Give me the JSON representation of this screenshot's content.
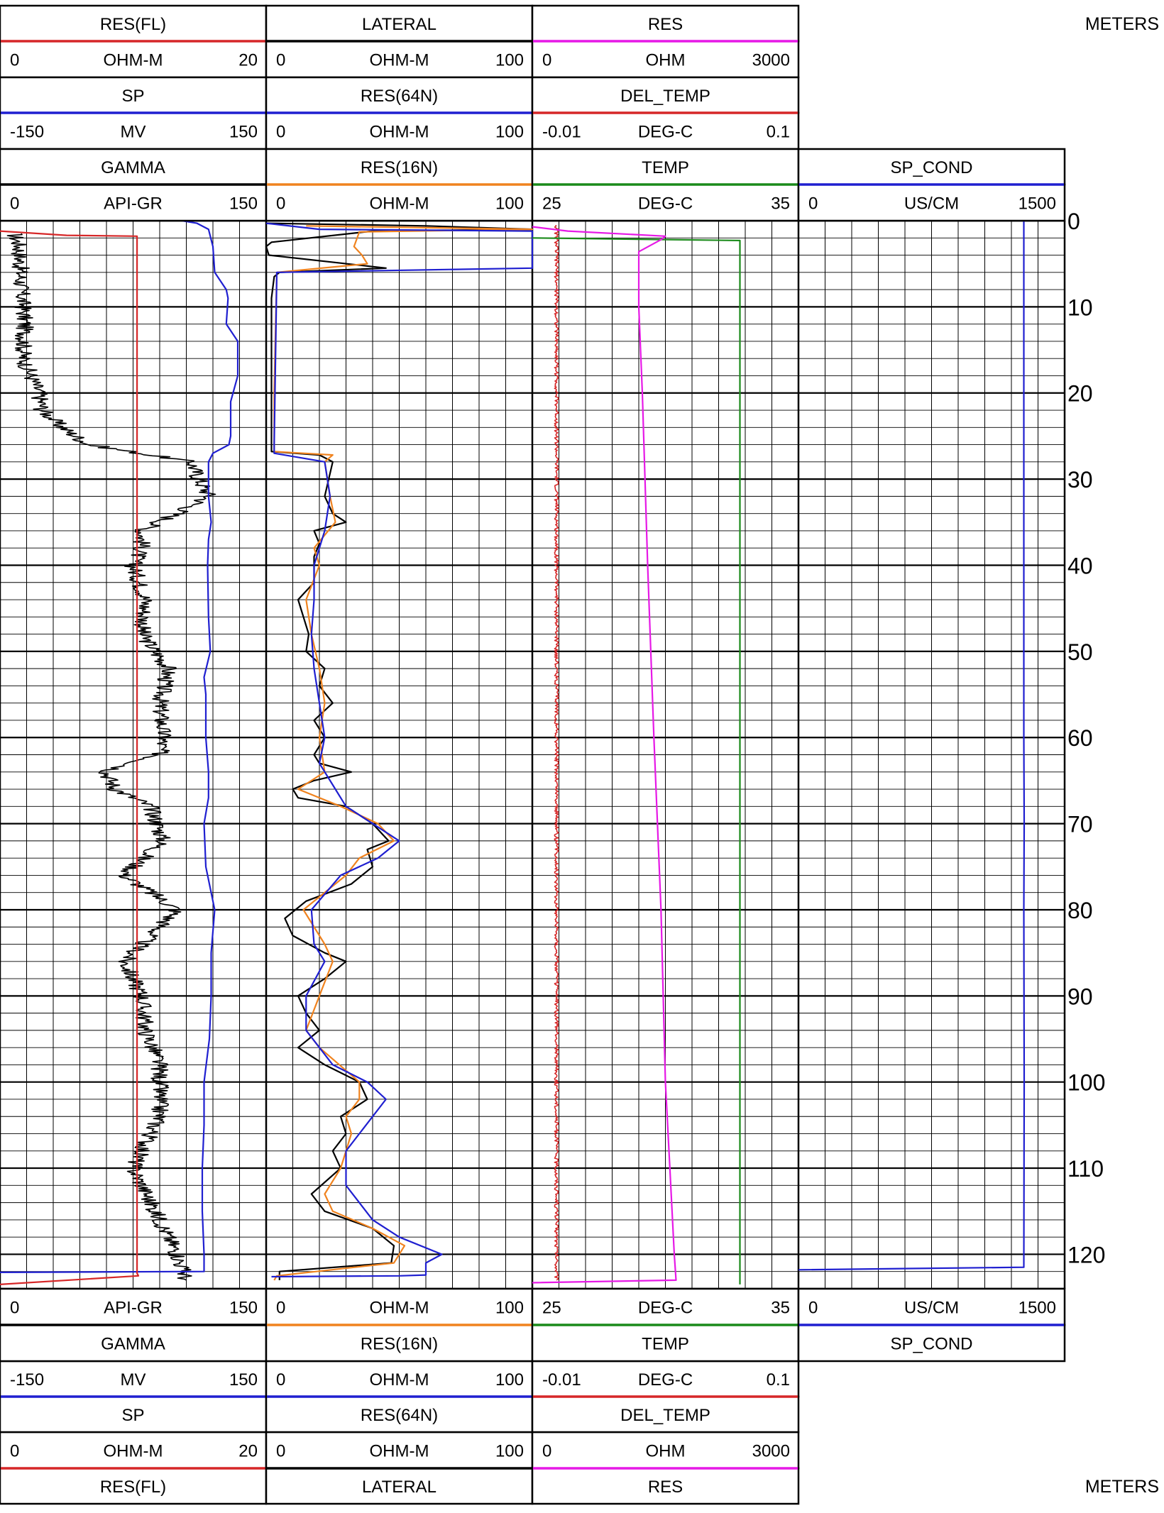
{
  "depth_unit_label": "METERS",
  "tracks": [
    {
      "id": "track1",
      "curves": [
        {
          "id": "res_fl",
          "name": "RES(FL)",
          "unit": "OHM-M",
          "min": "0",
          "max": "20",
          "color": "#d62728",
          "top_row": 1,
          "bottom_row": 6
        },
        {
          "id": "sp",
          "name": "SP",
          "unit": "MV",
          "min": "-150",
          "max": "150",
          "color": "#1f1fd0",
          "top_row": 2,
          "bottom_row": 5
        },
        {
          "id": "gamma",
          "name": "GAMMA",
          "unit": "API-GR",
          "min": "0",
          "max": "150",
          "color": "#000000",
          "top_row": 3,
          "bottom_row": 4
        }
      ]
    },
    {
      "id": "track2",
      "curves": [
        {
          "id": "lateral",
          "name": "LATERAL",
          "unit": "OHM-M",
          "min": "0",
          "max": "100",
          "color": "#000000",
          "top_row": 1,
          "bottom_row": 6
        },
        {
          "id": "res64n",
          "name": "RES(64N)",
          "unit": "OHM-M",
          "min": "0",
          "max": "100",
          "color": "#1f1fd0",
          "top_row": 2,
          "bottom_row": 5
        },
        {
          "id": "res16n",
          "name": "RES(16N)",
          "unit": "OHM-M",
          "min": "0",
          "max": "100",
          "color": "#f0831f",
          "top_row": 3,
          "bottom_row": 4
        }
      ]
    },
    {
      "id": "track3",
      "curves": [
        {
          "id": "res",
          "name": "RES",
          "unit": "OHM",
          "min": "0",
          "max": "3000",
          "color": "#e619e6",
          "top_row": 1,
          "bottom_row": 6
        },
        {
          "id": "del_temp",
          "name": "DEL_TEMP",
          "unit": "DEG-C",
          "min": "-0.01",
          "max": "0.1",
          "color": "#d62728",
          "top_row": 2,
          "bottom_row": 5
        },
        {
          "id": "temp",
          "name": "TEMP",
          "unit": "DEG-C",
          "min": "25",
          "max": "35",
          "color": "#1a8a1a",
          "top_row": 3,
          "bottom_row": 4
        }
      ]
    },
    {
      "id": "track4",
      "curves": [
        {
          "id": "sp_cond",
          "name": "SP_COND",
          "unit": "US/CM",
          "min": "0",
          "max": "1500",
          "color": "#1f1fd0",
          "top_row": 3,
          "bottom_row": 4
        }
      ]
    }
  ],
  "chart_data": {
    "type": "line",
    "depth_axis": {
      "label": "METERS",
      "range": [
        0,
        124
      ],
      "major_ticks": [
        0,
        10,
        20,
        30,
        40,
        50,
        60,
        70,
        80,
        90,
        100,
        110,
        120
      ],
      "minor_step": 2
    },
    "grid": true,
    "series": [
      {
        "id": "gamma",
        "name": "GAMMA",
        "track": 0,
        "range": [
          0,
          150
        ],
        "noise": 5,
        "points": [
          [
            1.5,
            8
          ],
          [
            3,
            11
          ],
          [
            8,
            12
          ],
          [
            12,
            14
          ],
          [
            16,
            13
          ],
          [
            20,
            22
          ],
          [
            22,
            24
          ],
          [
            24,
            35
          ],
          [
            26,
            50
          ],
          [
            28,
            108
          ],
          [
            30,
            112
          ],
          [
            32,
            118
          ],
          [
            34,
            100
          ],
          [
            36,
            80
          ],
          [
            38,
            80
          ],
          [
            40,
            75
          ],
          [
            44,
            82
          ],
          [
            48,
            80
          ],
          [
            52,
            95
          ],
          [
            56,
            90
          ],
          [
            60,
            92
          ],
          [
            62,
            90
          ],
          [
            64,
            60
          ],
          [
            66,
            65
          ],
          [
            68,
            85
          ],
          [
            72,
            92
          ],
          [
            76,
            70
          ],
          [
            80,
            100
          ],
          [
            84,
            80
          ],
          [
            86,
            70
          ],
          [
            90,
            80
          ],
          [
            94,
            82
          ],
          [
            98,
            90
          ],
          [
            104,
            90
          ],
          [
            110,
            75
          ],
          [
            116,
            90
          ],
          [
            120,
            100
          ],
          [
            123,
            105
          ]
        ]
      },
      {
        "id": "sp",
        "name": "SP",
        "track": 0,
        "range": [
          -150,
          150
        ],
        "points": [
          [
            0,
            55
          ],
          [
            0.3,
            72
          ],
          [
            1,
            85
          ],
          [
            3,
            90
          ],
          [
            6,
            92
          ],
          [
            8,
            105
          ],
          [
            9,
            107
          ],
          [
            12,
            105
          ],
          [
            14,
            118
          ],
          [
            18,
            118
          ],
          [
            21,
            110
          ],
          [
            25,
            110
          ],
          [
            26,
            108
          ],
          [
            27,
            90
          ],
          [
            28,
            85
          ],
          [
            32,
            85
          ],
          [
            35,
            88
          ],
          [
            37,
            85
          ],
          [
            40,
            84
          ],
          [
            46,
            85
          ],
          [
            50,
            87
          ],
          [
            53,
            80
          ],
          [
            55,
            82
          ],
          [
            60,
            82
          ],
          [
            64,
            85
          ],
          [
            67,
            85
          ],
          [
            70,
            80
          ],
          [
            75,
            82
          ],
          [
            80,
            92
          ],
          [
            85,
            88
          ],
          [
            90,
            88
          ],
          [
            95,
            86
          ],
          [
            100,
            80
          ],
          [
            105,
            80
          ],
          [
            110,
            78
          ],
          [
            115,
            78
          ],
          [
            120,
            80
          ],
          [
            122,
            80
          ],
          [
            122.1,
            -150
          ]
        ]
      },
      {
        "id": "res_fl",
        "name": "RES(FL)",
        "track": 0,
        "range": [
          0,
          20
        ],
        "points": [
          [
            1.2,
            0
          ],
          [
            1.7,
            5.0
          ],
          [
            1.8,
            10.3
          ],
          [
            122.2,
            10.3
          ],
          [
            122.5,
            10.4
          ],
          [
            123.5,
            0
          ]
        ]
      },
      {
        "id": "lateral",
        "name": "LATERAL",
        "track": 1,
        "range": [
          0,
          100
        ],
        "points": [
          [
            0.3,
            0
          ],
          [
            0.6,
            60
          ],
          [
            1,
            100
          ],
          [
            1.2,
            40
          ],
          [
            2.5,
            2
          ],
          [
            3,
            0
          ],
          [
            4,
            1
          ],
          [
            5.5,
            45
          ],
          [
            6,
            5
          ],
          [
            6.5,
            3
          ],
          [
            9,
            2
          ],
          [
            20,
            2
          ],
          [
            26.8,
            2
          ],
          [
            27.2,
            20
          ],
          [
            28,
            25
          ],
          [
            32,
            22
          ],
          [
            34,
            25
          ],
          [
            35,
            30
          ],
          [
            36,
            18
          ],
          [
            37.5,
            20
          ],
          [
            39,
            18
          ],
          [
            42,
            18
          ],
          [
            44,
            12
          ],
          [
            46,
            14
          ],
          [
            48,
            16
          ],
          [
            50,
            15
          ],
          [
            52,
            22
          ],
          [
            54,
            20
          ],
          [
            56,
            25
          ],
          [
            58,
            18
          ],
          [
            60,
            22
          ],
          [
            62,
            18
          ],
          [
            63,
            20
          ],
          [
            64,
            32
          ],
          [
            65,
            18
          ],
          [
            66,
            10
          ],
          [
            67,
            12
          ],
          [
            68,
            30
          ],
          [
            70,
            40
          ],
          [
            72,
            46
          ],
          [
            73,
            38
          ],
          [
            75,
            40
          ],
          [
            77,
            32
          ],
          [
            79,
            15
          ],
          [
            81,
            7
          ],
          [
            83,
            10
          ],
          [
            85,
            22
          ],
          [
            86,
            30
          ],
          [
            88,
            22
          ],
          [
            90,
            12
          ],
          [
            92,
            15
          ],
          [
            94,
            20
          ],
          [
            96,
            12
          ],
          [
            98,
            22
          ],
          [
            100,
            35
          ],
          [
            102,
            38
          ],
          [
            104,
            28
          ],
          [
            106,
            30
          ],
          [
            108,
            25
          ],
          [
            110,
            28
          ],
          [
            113,
            17
          ],
          [
            115,
            22
          ],
          [
            117,
            40
          ],
          [
            119,
            48
          ],
          [
            121,
            47
          ],
          [
            122,
            5
          ],
          [
            123,
            5
          ]
        ]
      },
      {
        "id": "res16n",
        "name": "RES(16N)",
        "track": 1,
        "range": [
          0,
          100
        ],
        "points": [
          [
            0.6,
            15
          ],
          [
            1,
            100
          ],
          [
            1.3,
            35
          ],
          [
            3,
            33
          ],
          [
            4,
            36
          ],
          [
            5,
            38
          ],
          [
            6,
            4
          ],
          [
            20,
            3
          ],
          [
            26.8,
            3
          ],
          [
            27.2,
            25
          ],
          [
            28,
            22
          ],
          [
            32,
            24
          ],
          [
            35,
            26
          ],
          [
            38,
            18
          ],
          [
            40,
            20
          ],
          [
            44,
            15
          ],
          [
            48,
            17
          ],
          [
            52,
            20
          ],
          [
            56,
            22
          ],
          [
            60,
            20
          ],
          [
            64,
            22
          ],
          [
            66,
            12
          ],
          [
            68,
            28
          ],
          [
            70,
            42
          ],
          [
            72,
            48
          ],
          [
            74,
            35
          ],
          [
            76,
            30
          ],
          [
            80,
            14
          ],
          [
            84,
            22
          ],
          [
            86,
            25
          ],
          [
            90,
            20
          ],
          [
            94,
            15
          ],
          [
            96,
            20
          ],
          [
            100,
            35
          ],
          [
            102,
            35
          ],
          [
            104,
            30
          ],
          [
            106,
            32
          ],
          [
            110,
            28
          ],
          [
            113,
            22
          ],
          [
            115,
            25
          ],
          [
            117,
            40
          ],
          [
            119,
            52
          ],
          [
            121,
            48
          ],
          [
            122.5,
            4
          ],
          [
            123,
            3
          ]
        ]
      },
      {
        "id": "res64n",
        "name": "RES(64N)",
        "track": 1,
        "range": [
          0,
          100
        ],
        "points": [
          [
            0.3,
            0
          ],
          [
            1,
            20
          ],
          [
            1.2,
            100
          ],
          [
            3,
            100
          ],
          [
            5.5,
            100
          ],
          [
            6,
            4
          ],
          [
            26,
            3
          ],
          [
            27,
            3
          ],
          [
            28,
            22
          ],
          [
            32,
            24
          ],
          [
            36,
            22
          ],
          [
            40,
            18
          ],
          [
            44,
            18
          ],
          [
            48,
            17
          ],
          [
            52,
            18
          ],
          [
            56,
            20
          ],
          [
            60,
            22
          ],
          [
            63,
            20
          ],
          [
            66,
            26
          ],
          [
            68,
            30
          ],
          [
            70,
            40
          ],
          [
            72,
            50
          ],
          [
            74,
            42
          ],
          [
            76,
            28
          ],
          [
            80,
            17
          ],
          [
            84,
            18
          ],
          [
            86,
            22
          ],
          [
            90,
            15
          ],
          [
            94,
            15
          ],
          [
            98,
            25
          ],
          [
            100,
            38
          ],
          [
            102,
            45
          ],
          [
            104,
            40
          ],
          [
            108,
            30
          ],
          [
            112,
            30
          ],
          [
            116,
            40
          ],
          [
            118,
            50
          ],
          [
            120,
            66
          ],
          [
            121,
            60
          ],
          [
            122.4,
            60
          ],
          [
            122.5,
            50
          ],
          [
            122.6,
            2
          ]
        ]
      },
      {
        "id": "del_temp",
        "name": "DEL_TEMP",
        "track": 2,
        "range": [
          -0.01,
          0.1
        ],
        "noise": 0.0008,
        "points": [
          [
            0.5,
            0.0
          ],
          [
            123,
            0.0
          ]
        ]
      },
      {
        "id": "temp",
        "name": "TEMP",
        "track": 2,
        "range": [
          25,
          35
        ],
        "points": [
          [
            2,
            25
          ],
          [
            2.3,
            32.8
          ],
          [
            123.5,
            32.8
          ]
        ]
      },
      {
        "id": "res",
        "name": "RES",
        "track": 2,
        "range": [
          0,
          3000
        ],
        "points": [
          [
            0.7,
            0
          ],
          [
            1.2,
            400
          ],
          [
            1.8,
            1500
          ],
          [
            2.2,
            1450
          ],
          [
            3.6,
            1200
          ],
          [
            5,
            1200
          ],
          [
            10,
            1200
          ],
          [
            20,
            1240
          ],
          [
            40,
            1300
          ],
          [
            60,
            1370
          ],
          [
            80,
            1450
          ],
          [
            100,
            1500
          ],
          [
            110,
            1550
          ],
          [
            120,
            1600
          ],
          [
            123,
            1620
          ],
          [
            123.3,
            0
          ]
        ]
      },
      {
        "id": "sp_cond",
        "name": "SP_COND",
        "track": 3,
        "range": [
          0,
          1500
        ],
        "points": [
          [
            0,
            1270
          ],
          [
            60,
            1270
          ],
          [
            70,
            1272
          ],
          [
            80,
            1270
          ],
          [
            100,
            1272
          ],
          [
            121.5,
            1270
          ],
          [
            121.8,
            0
          ]
        ]
      }
    ]
  }
}
